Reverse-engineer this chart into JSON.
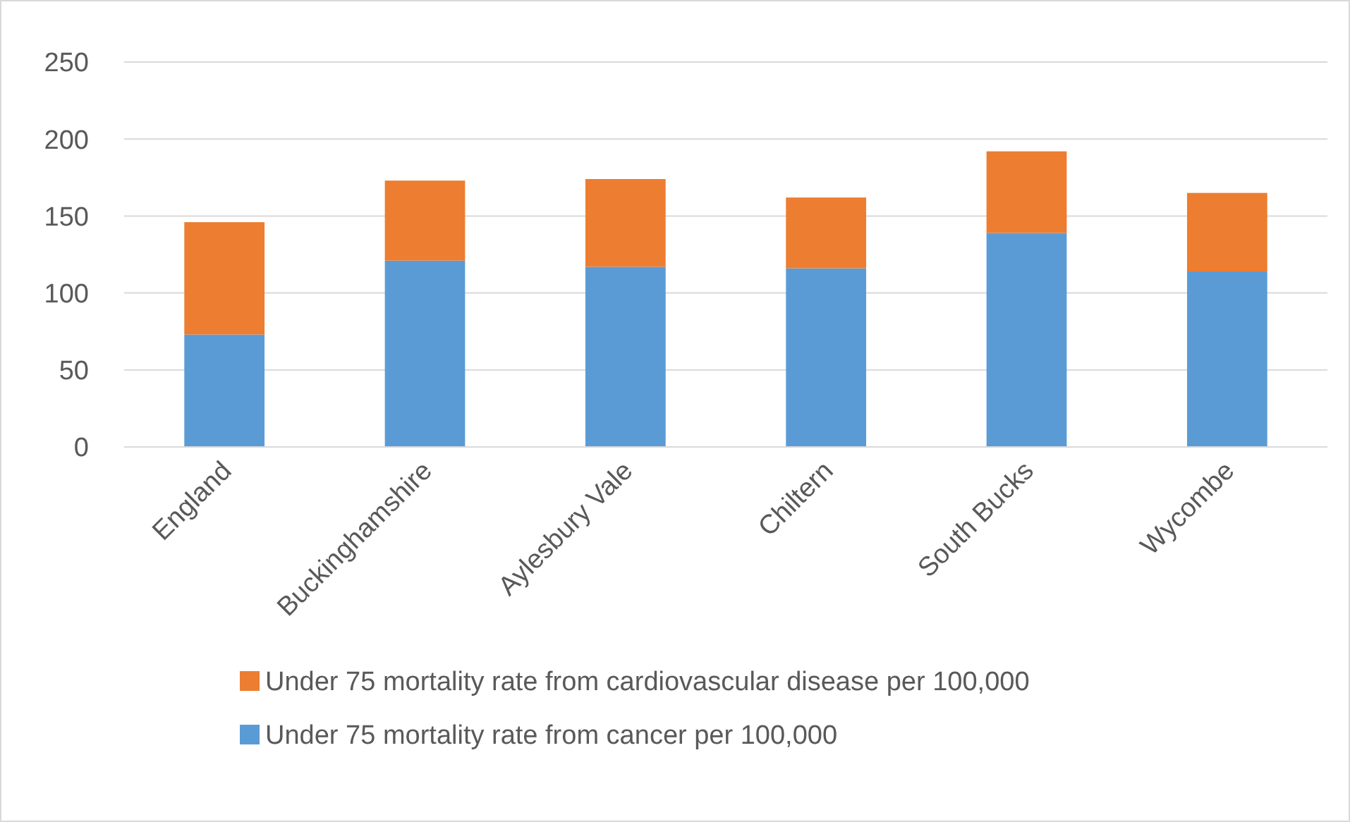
{
  "chart_data": {
    "type": "bar",
    "stacked": true,
    "categories": [
      "England",
      "Buckinghamshire",
      "Aylesbury Vale",
      "Chiltern",
      "South Bucks",
      "Wycombe"
    ],
    "series": [
      {
        "name": "Under 75 mortality rate from cancer per 100,000",
        "color": "#5b9bd5",
        "values": [
          73,
          121,
          117,
          116,
          139,
          114
        ]
      },
      {
        "name": "Under 75 mortality rate from cardiovascular disease per 100,000",
        "color": "#ed7d31",
        "values": [
          73,
          52,
          57,
          46,
          53,
          51
        ]
      }
    ],
    "ylim": [
      0,
      250
    ],
    "yticks": [
      0,
      50,
      100,
      150,
      200,
      250
    ],
    "grid": "y",
    "legend": "bottom"
  }
}
